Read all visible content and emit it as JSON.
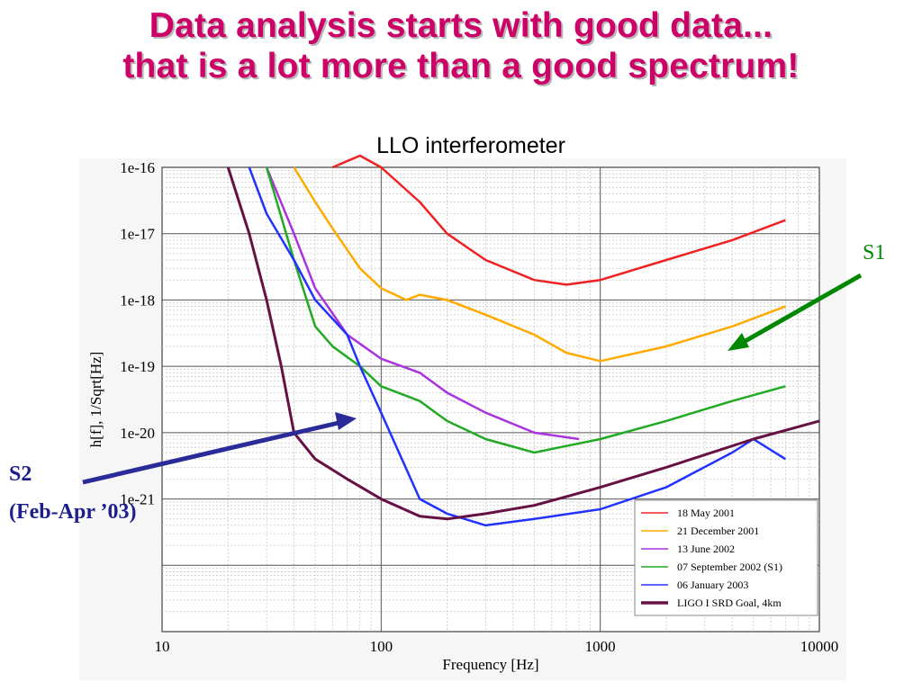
{
  "slide": {
    "title_line1": "Data analysis starts with good data...",
    "title_line2": "that is a lot more than a good spectrum!",
    "subtitle": "LLO interferometer"
  },
  "annotations": {
    "s1": "S1",
    "s2_line1": "S2",
    "s2_line2": "(Feb-Apr ’03)"
  },
  "colors": {
    "title": "#cc0066",
    "may2001": "#ee2222",
    "dec2001": "#ffaa00",
    "jun2002": "#aa33dd",
    "sep2002": "#22aa22",
    "jan2003": "#2233ff",
    "goal": "#661144",
    "arrow_s1": "#008800",
    "arrow_s2": "#2a2a99"
  },
  "chart_data": {
    "type": "line",
    "xlabel": "Frequency [Hz]",
    "ylabel": "h[f], 1/Sqrt[Hz]",
    "x_scale": "log",
    "y_scale": "log",
    "xlim": [
      10,
      10000
    ],
    "ylim": [
      1e-23,
      1e-16
    ],
    "x_ticks": [
      "10",
      "100",
      "1000",
      "10000"
    ],
    "y_ticks": [
      "1e-16",
      "1e-17",
      "1e-18",
      "1e-19",
      "1e-20",
      "1e-21"
    ],
    "grid": true,
    "legend_position": "bottom-right",
    "series": [
      {
        "name": "18 May 2001",
        "color_key": "may2001",
        "x": [
          60,
          80,
          100,
          150,
          200,
          300,
          500,
          700,
          1000,
          2000,
          4000,
          7000
        ],
        "y": [
          1e-16,
          1.5e-16,
          1e-16,
          3e-17,
          1e-17,
          4e-18,
          2e-18,
          1.7e-18,
          2e-18,
          4e-18,
          8e-18,
          1.6e-17
        ]
      },
      {
        "name": "21 December 2001",
        "color_key": "dec2001",
        "x": [
          40,
          50,
          60,
          80,
          100,
          130,
          150,
          200,
          300,
          500,
          700,
          1000,
          2000,
          4000,
          7000
        ],
        "y": [
          1e-16,
          3e-17,
          1.2e-17,
          3e-18,
          1.5e-18,
          1e-18,
          1.2e-18,
          1e-18,
          6e-19,
          3e-19,
          1.6e-19,
          1.2e-19,
          2e-19,
          4e-19,
          8e-19
        ]
      },
      {
        "name": "13 June 2002",
        "color_key": "jun2002",
        "x": [
          30,
          40,
          50,
          70,
          100,
          150,
          200,
          300,
          500,
          800
        ],
        "y": [
          1e-16,
          1e-17,
          1.5e-18,
          3e-19,
          1.3e-19,
          8e-20,
          4e-20,
          2e-20,
          1e-20,
          8e-21
        ]
      },
      {
        "name": "07 September 2002 (S1)",
        "color_key": "sep2002",
        "x": [
          30,
          40,
          50,
          60,
          80,
          100,
          150,
          200,
          300,
          500,
          1000,
          2000,
          4000,
          7000
        ],
        "y": [
          1e-16,
          4e-18,
          4e-19,
          2e-19,
          1e-19,
          5e-20,
          3e-20,
          1.5e-20,
          8e-21,
          5e-21,
          8e-21,
          1.5e-20,
          3e-20,
          5e-20
        ]
      },
      {
        "name": "06 January 2003",
        "color_key": "jan2003",
        "x": [
          25,
          30,
          40,
          50,
          70,
          80,
          100,
          150,
          200,
          300,
          500,
          1000,
          2000,
          4000,
          5000,
          7000
        ],
        "y": [
          1e-16,
          2e-17,
          4e-18,
          1e-18,
          3e-19,
          1e-19,
          2e-20,
          1e-21,
          6e-22,
          4e-22,
          5e-22,
          7e-22,
          1.5e-21,
          5e-21,
          8e-21,
          4e-21
        ]
      },
      {
        "name": "LIGO I SRD Goal, 4km",
        "color_key": "goal",
        "x": [
          20,
          25,
          30,
          35,
          40,
          50,
          70,
          100,
          150,
          200,
          300,
          500,
          1000,
          2000,
          5000,
          10000
        ],
        "y": [
          1e-16,
          1e-17,
          1e-18,
          1e-19,
          1e-20,
          4e-21,
          2e-21,
          1e-21,
          5.5e-22,
          5e-22,
          6e-22,
          8e-22,
          1.5e-21,
          3e-21,
          8e-21,
          1.5e-20
        ]
      }
    ]
  }
}
